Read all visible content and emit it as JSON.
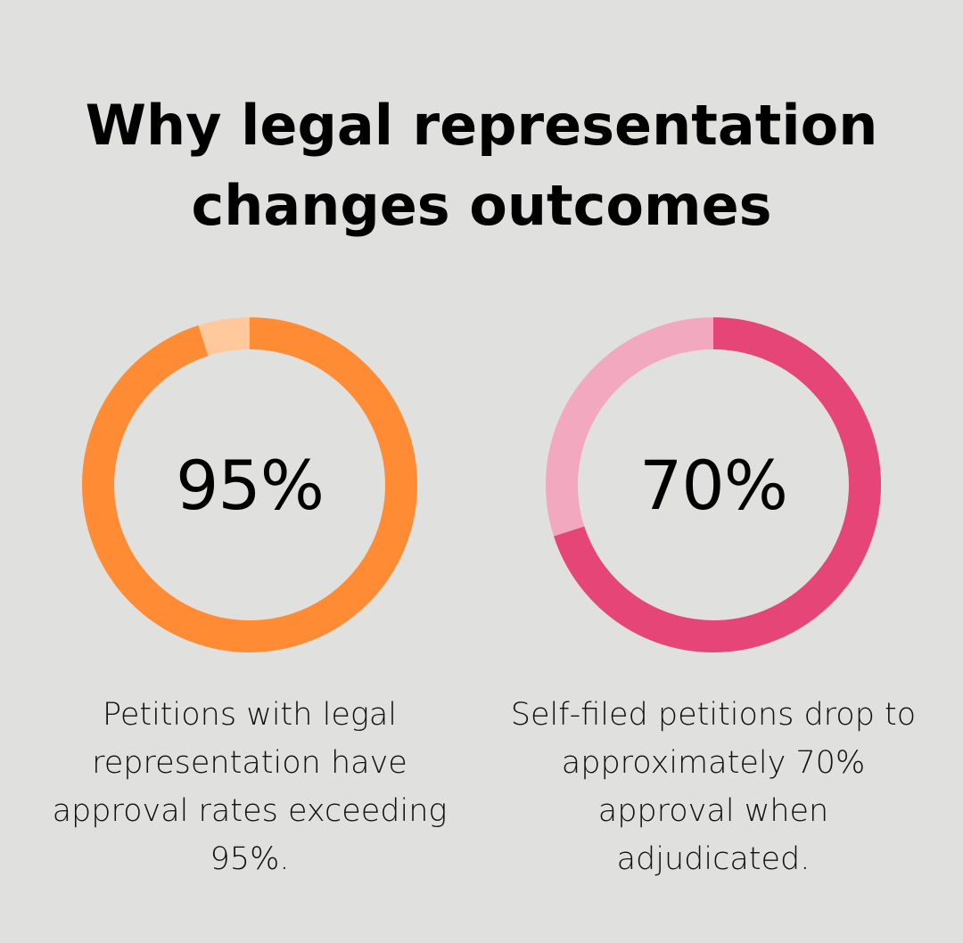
{
  "title": {
    "line1": "Why legal representation",
    "line2": "changes outcomes"
  },
  "chart_data": [
    {
      "type": "pie",
      "value": 95,
      "label": "95%",
      "max": 100,
      "colors": {
        "filled": "#ff8c35",
        "remaining": "#ffc99c"
      },
      "caption": [
        "Petitions with legal",
        "representation have",
        "approval rates exceeding",
        "95%."
      ]
    },
    {
      "type": "pie",
      "value": 70,
      "label": "70%",
      "max": 100,
      "colors": {
        "filled": "#e54577",
        "remaining": "#f2a8bf"
      },
      "caption": [
        "Self-filed petitions drop to",
        "approximately 70%",
        "approval when",
        "adjudicated."
      ]
    }
  ]
}
